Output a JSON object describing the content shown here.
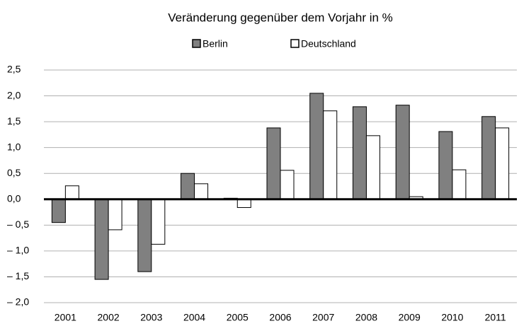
{
  "chart_data": {
    "type": "bar",
    "title": "Veränderung gegenüber dem Vorjahr in %",
    "categories": [
      "2001",
      "2002",
      "2003",
      "2004",
      "2005",
      "2006",
      "2007",
      "2008",
      "2009",
      "2010",
      "2011"
    ],
    "series": [
      {
        "name": "Berlin",
        "color": "#808080",
        "values": [
          -0.45,
          -1.55,
          -1.4,
          0.5,
          0.02,
          1.38,
          2.05,
          1.79,
          1.82,
          1.31,
          1.6
        ]
      },
      {
        "name": "Deutschland",
        "color": "#ffffff",
        "values": [
          0.26,
          -0.59,
          -0.87,
          0.3,
          -0.16,
          0.56,
          1.71,
          1.23,
          0.05,
          0.57,
          1.38
        ]
      }
    ],
    "ylim": [
      -2.0,
      2.5
    ],
    "yticks": [
      {
        "value": -2.0,
        "label": "– 2,0"
      },
      {
        "value": -1.5,
        "label": "– 1,5"
      },
      {
        "value": -1.0,
        "label": "– 1,0"
      },
      {
        "value": -0.5,
        "label": "– 0,5"
      },
      {
        "value": 0,
        "label": "0,0"
      },
      {
        "value": 0.5,
        "label": "0,5"
      },
      {
        "value": 1.0,
        "label": "1,0"
      },
      {
        "value": 1.5,
        "label": "1,5"
      },
      {
        "value": 2.0,
        "label": "2,0"
      },
      {
        "value": 2.5,
        "label": "2,5"
      }
    ],
    "grid": true
  }
}
